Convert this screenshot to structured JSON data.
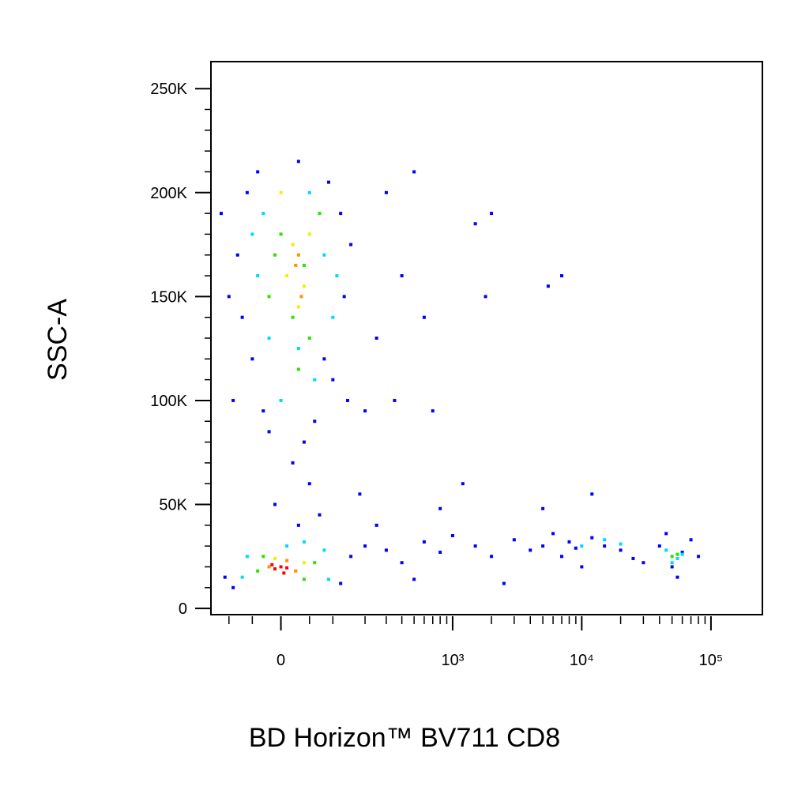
{
  "chart_data": {
    "type": "scatter",
    "xlabel": "BD Horizon™ BV711 CD8",
    "ylabel": "SSC-A",
    "xscale": "asinh",
    "xscale_width": 94,
    "xlim": [
      -150,
      250000
    ],
    "ylim": [
      -3000,
      263000
    ],
    "xticks": [
      0,
      {
        "value": 1000,
        "label": "10³"
      },
      {
        "value": 10000,
        "label": "10⁴"
      },
      {
        "value": 100000,
        "label": "10⁵"
      }
    ],
    "xminorticks": [
      -100,
      -50,
      50,
      100,
      200,
      300,
      400,
      500,
      600,
      700,
      800,
      900,
      2000,
      3000,
      4000,
      5000,
      6000,
      7000,
      8000,
      9000,
      20000,
      30000,
      40000,
      50000,
      60000,
      70000,
      80000,
      90000
    ],
    "yticks": [
      0,
      {
        "value": 50000,
        "label": "50K"
      },
      {
        "value": 100000,
        "label": "100K"
      },
      {
        "value": 150000,
        "label": "150K"
      },
      {
        "value": 200000,
        "label": "200K"
      },
      {
        "value": 250000,
        "label": "250K"
      }
    ],
    "yminorticks": [
      10000,
      20000,
      30000,
      40000,
      60000,
      70000,
      80000,
      90000,
      110000,
      120000,
      130000,
      140000,
      160000,
      170000,
      180000,
      190000,
      210000,
      220000,
      230000,
      240000
    ],
    "series": [
      {
        "color": "#0000ff",
        "x": [
          -60,
          -40,
          30,
          90,
          120,
          -80,
          150,
          -70,
          130,
          -50,
          100,
          -30,
          60,
          140,
          200,
          -20,
          40,
          80,
          250,
          400,
          600,
          1500,
          2000,
          1800,
          5500,
          7000,
          300,
          500,
          -120,
          -100,
          -90,
          20,
          50,
          -10,
          70,
          30,
          180,
          350,
          700,
          1200,
          -110,
          -90,
          120,
          150,
          200,
          300,
          400,
          600,
          800,
          1000,
          1500,
          2000,
          3000,
          4000,
          5000,
          6000,
          7000,
          8000,
          9000,
          12000,
          15000,
          20000,
          25000,
          30000,
          40000,
          50000,
          60000,
          70000,
          80000,
          10000,
          45000,
          55000,
          2500,
          500,
          250,
          12000,
          5000,
          800
        ],
        "y": [
          200000,
          210000,
          215000,
          205000,
          190000,
          170000,
          175000,
          140000,
          150000,
          120000,
          110000,
          95000,
          90000,
          100000,
          95000,
          85000,
          80000,
          120000,
          130000,
          160000,
          140000,
          185000,
          190000,
          150000,
          155000,
          160000,
          200000,
          210000,
          190000,
          150000,
          100000,
          70000,
          60000,
          50000,
          45000,
          40000,
          55000,
          100000,
          95000,
          60000,
          15000,
          10000,
          12000,
          25000,
          30000,
          28000,
          22000,
          32000,
          27000,
          35000,
          30000,
          25000,
          33000,
          28000,
          30000,
          36000,
          25000,
          32000,
          29000,
          34000,
          30000,
          28000,
          24000,
          22000,
          30000,
          20000,
          27000,
          33000,
          25000,
          20000,
          36000,
          15000,
          12000,
          14000,
          40000,
          55000,
          48000,
          48000
        ]
      },
      {
        "color": "#00d8ff",
        "x": [
          -30,
          50,
          80,
          -40,
          100,
          -20,
          60,
          0,
          30,
          -50,
          110,
          -60,
          80,
          -70,
          90,
          10,
          40,
          15000,
          20000,
          45000,
          55000,
          50000,
          60000,
          10000
        ],
        "y": [
          190000,
          200000,
          170000,
          160000,
          140000,
          130000,
          110000,
          100000,
          125000,
          180000,
          160000,
          25000,
          28000,
          15000,
          14000,
          30000,
          32000,
          33000,
          31000,
          28000,
          24000,
          22000,
          26000,
          30000
        ]
      },
      {
        "color": "#30e000",
        "x": [
          0,
          40,
          -20,
          70,
          20,
          50,
          -10,
          30,
          -30,
          60,
          40,
          -40,
          50000,
          55000
        ],
        "y": [
          180000,
          165000,
          150000,
          190000,
          140000,
          130000,
          170000,
          115000,
          25000,
          22000,
          14000,
          18000,
          25000,
          26000
        ]
      },
      {
        "color": "#f0f000",
        "x": [
          20,
          40,
          10,
          50,
          0,
          30,
          -10,
          40
        ],
        "y": [
          175000,
          155000,
          160000,
          180000,
          200000,
          145000,
          24000,
          22000
        ]
      },
      {
        "color": "#ff9000",
        "x": [
          25,
          35,
          30,
          -20,
          25,
          10
        ],
        "y": [
          165000,
          150000,
          170000,
          20000,
          18000,
          23000
        ]
      },
      {
        "color": "#ff0000",
        "x": [
          -10,
          0,
          -15,
          10,
          5
        ],
        "y": [
          19000,
          20000,
          21000,
          19500,
          17000
        ]
      }
    ]
  }
}
